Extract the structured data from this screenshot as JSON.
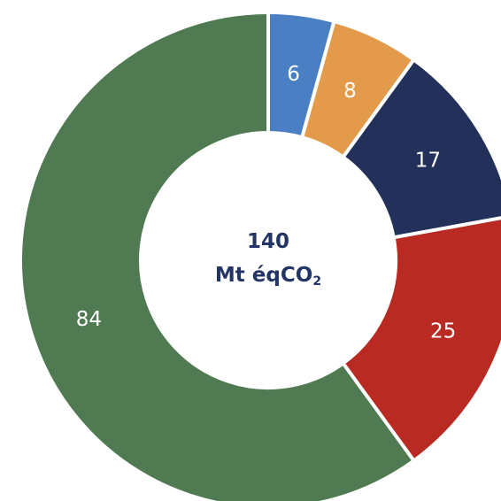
{
  "chart_data": {
    "type": "pie",
    "style": "donut",
    "categories": [
      "",
      "",
      "",
      "",
      ""
    ],
    "values": [
      6,
      8,
      17,
      25,
      84
    ],
    "colors": [
      "#4a7fc4",
      "#e39a4b",
      "#22305a",
      "#b92b22",
      "#4f7a52"
    ],
    "start_angle_deg": 0,
    "direction": "clockwise",
    "center_label": {
      "line1": "140",
      "line2_main": "Mt éqCO",
      "line2_subscript": "2"
    },
    "data_labels": [
      "6",
      "8",
      "17",
      "25",
      "84"
    ],
    "legend": "none",
    "title": ""
  }
}
